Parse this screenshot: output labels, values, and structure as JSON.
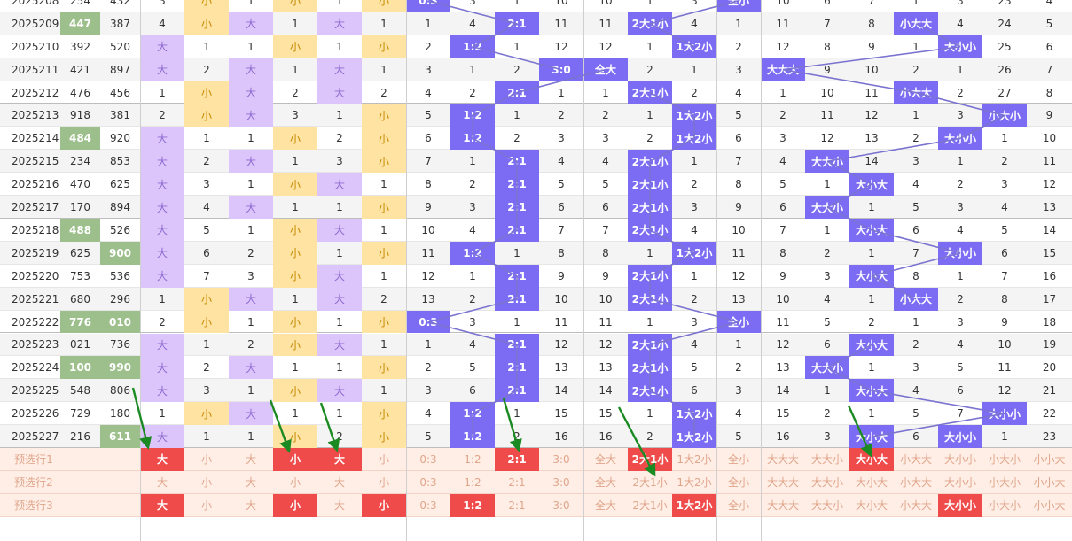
{
  "columns": 24,
  "rows": [
    [
      "2025208",
      "254",
      "432",
      "3",
      "小",
      "1",
      "小",
      "1",
      "小",
      "0:3",
      "3",
      "1",
      "10",
      "10",
      "1",
      "3",
      "全小",
      "10",
      "6",
      "7",
      "1",
      "3",
      "23",
      "4"
    ],
    [
      "2025209",
      "447",
      "387",
      "4",
      "小",
      "大",
      "1",
      "大",
      "1",
      "1",
      "4",
      "2:1",
      "11",
      "11",
      "2大1小",
      "4",
      "1",
      "11",
      "7",
      "8",
      "小大大",
      "4",
      "24",
      "5"
    ],
    [
      "2025210",
      "392",
      "520",
      "大",
      "1",
      "1",
      "小",
      "1",
      "小",
      "2",
      "1:2",
      "1",
      "12",
      "12",
      "1",
      "1大2小",
      "2",
      "12",
      "8",
      "9",
      "1",
      "大小小",
      "25",
      "6"
    ],
    [
      "2025211",
      "421",
      "897",
      "大",
      "2",
      "大",
      "1",
      "大",
      "1",
      "3",
      "1",
      "2",
      "3:0",
      "全大",
      "2",
      "1",
      "3",
      "大大大",
      "9",
      "10",
      "2",
      "1",
      "26",
      "7"
    ],
    [
      "2025212",
      "476",
      "456",
      "1",
      "小",
      "大",
      "2",
      "大",
      "2",
      "4",
      "2",
      "2:1",
      "1",
      "1",
      "2大1小",
      "2",
      "4",
      "1",
      "10",
      "11",
      "小大大",
      "2",
      "27",
      "8"
    ],
    [
      "2025213",
      "918",
      "381",
      "2",
      "小",
      "大",
      "3",
      "1",
      "小",
      "5",
      "1:2",
      "1",
      "2",
      "2",
      "1",
      "1大2小",
      "5",
      "2",
      "11",
      "12",
      "1",
      "3",
      "小大小",
      "9"
    ],
    [
      "2025214",
      "484",
      "920",
      "大",
      "1",
      "1",
      "小",
      "2",
      "小",
      "6",
      "1:2",
      "2",
      "3",
      "3",
      "2",
      "1大2小",
      "6",
      "3",
      "12",
      "13",
      "2",
      "大小小",
      "1",
      "10"
    ],
    [
      "2025215",
      "234",
      "853",
      "大",
      "2",
      "大",
      "1",
      "3",
      "小",
      "7",
      "1",
      "2:1",
      "4",
      "4",
      "2大1小",
      "1",
      "7",
      "4",
      "大大小",
      "14",
      "3",
      "1",
      "2",
      "11"
    ],
    [
      "2025216",
      "470",
      "625",
      "大",
      "3",
      "1",
      "小",
      "大",
      "1",
      "8",
      "2",
      "2:1",
      "5",
      "5",
      "2大1小",
      "2",
      "8",
      "5",
      "1",
      "大小大",
      "4",
      "2",
      "3",
      "12"
    ],
    [
      "2025217",
      "170",
      "894",
      "大",
      "4",
      "大",
      "1",
      "1",
      "小",
      "9",
      "3",
      "2:1",
      "6",
      "6",
      "2大1小",
      "3",
      "9",
      "6",
      "大大小",
      "1",
      "5",
      "3",
      "4",
      "13"
    ],
    [
      "2025218",
      "488",
      "526",
      "大",
      "5",
      "1",
      "小",
      "大",
      "1",
      "10",
      "4",
      "2:1",
      "7",
      "7",
      "2大1小",
      "4",
      "10",
      "7",
      "1",
      "大小大",
      "6",
      "4",
      "5",
      "14"
    ],
    [
      "2025219",
      "625",
      "900",
      "大",
      "6",
      "2",
      "小",
      "1",
      "小",
      "11",
      "1:2",
      "1",
      "8",
      "8",
      "1",
      "1大2小",
      "11",
      "8",
      "2",
      "1",
      "7",
      "大小小",
      "6",
      "15"
    ],
    [
      "2025220",
      "753",
      "536",
      "大",
      "7",
      "3",
      "小",
      "大",
      "1",
      "12",
      "1",
      "2:1",
      "9",
      "9",
      "2大1小",
      "1",
      "12",
      "9",
      "3",
      "大小大",
      "8",
      "1",
      "7",
      "16"
    ],
    [
      "2025221",
      "680",
      "296",
      "1",
      "小",
      "大",
      "1",
      "大",
      "2",
      "13",
      "2",
      "2:1",
      "10",
      "10",
      "2大1小",
      "2",
      "13",
      "10",
      "4",
      "1",
      "小大大",
      "2",
      "8",
      "17"
    ],
    [
      "2025222",
      "776",
      "010",
      "2",
      "小",
      "1",
      "小",
      "1",
      "小",
      "0:3",
      "3",
      "1",
      "11",
      "11",
      "1",
      "3",
      "全小",
      "11",
      "5",
      "2",
      "1",
      "3",
      "9",
      "18"
    ],
    [
      "2025223",
      "021",
      "736",
      "大",
      "1",
      "2",
      "小",
      "大",
      "1",
      "1",
      "4",
      "2:1",
      "12",
      "12",
      "2大1小",
      "4",
      "1",
      "12",
      "6",
      "大小大",
      "2",
      "4",
      "10",
      "19"
    ],
    [
      "2025224",
      "100",
      "990",
      "大",
      "2",
      "大",
      "1",
      "1",
      "小",
      "2",
      "5",
      "2:1",
      "13",
      "13",
      "2大1小",
      "5",
      "2",
      "13",
      "大大小",
      "1",
      "3",
      "5",
      "11",
      "20"
    ],
    [
      "2025225",
      "548",
      "806",
      "大",
      "3",
      "1",
      "小",
      "大",
      "1",
      "3",
      "6",
      "2:1",
      "14",
      "14",
      "2大1小",
      "6",
      "3",
      "14",
      "1",
      "大小大",
      "4",
      "6",
      "12",
      "21"
    ],
    [
      "2025226",
      "729",
      "180",
      "1",
      "小",
      "大",
      "1",
      "1",
      "小",
      "4",
      "1:2",
      "1",
      "15",
      "15",
      "1",
      "1大2小",
      "4",
      "15",
      "2",
      "1",
      "5",
      "7",
      "大小小",
      "22"
    ],
    [
      "2025227",
      "216",
      "611",
      "大",
      "1",
      "1",
      "小",
      "2",
      "小",
      "5",
      "1:2",
      "2",
      "16",
      "16",
      "2",
      "1大2小",
      "5",
      "16",
      "3",
      "大小大",
      "6",
      "大小小",
      "1",
      "23"
    ]
  ],
  "highlight_nums": [
    [
      1,
      1
    ],
    [
      6,
      1
    ],
    [
      10,
      1
    ],
    [
      11,
      2
    ],
    [
      14,
      1
    ],
    [
      14,
      2
    ],
    [
      16,
      1
    ],
    [
      16,
      2
    ],
    [
      19,
      2
    ]
  ],
  "forecast": [
    {
      "label": "预选行1",
      "cells": [
        "-",
        "-",
        "大",
        "小",
        "大",
        "小",
        "大",
        "小",
        "0:3",
        "1:2",
        "2:1",
        "3:0",
        "全大",
        "2大1小",
        "1大2小",
        "全小",
        "大大大",
        "大大小",
        "大小大",
        "小大大",
        "大小小",
        "小大小",
        "小小大"
      ],
      "hits": [
        2,
        5,
        6,
        10,
        13,
        18
      ]
    },
    {
      "label": "预选行2",
      "cells": [
        "-",
        "-",
        "大",
        "小",
        "大",
        "小",
        "大",
        "小",
        "0:3",
        "1:2",
        "2:1",
        "3:0",
        "全大",
        "2大1小",
        "1大2小",
        "全小",
        "大大大",
        "大大小",
        "大小大",
        "小大大",
        "大小小",
        "小大小",
        "小小大"
      ],
      "hits": []
    },
    {
      "label": "预选行3",
      "cells": [
        "-",
        "-",
        "大",
        "小",
        "大",
        "小",
        "大",
        "小",
        "0:3",
        "1:2",
        "2:1",
        "3:0",
        "全大",
        "2大1小",
        "1大2小",
        "全小",
        "大大大",
        "大大小",
        "大小大",
        "小大大",
        "大小小",
        "小大小",
        "小小大"
      ],
      "hits": [
        2,
        5,
        7,
        9,
        14,
        20
      ]
    }
  ],
  "colors": {
    "big_bg": "#dcc5fb",
    "big_fg": "#8f6bd1",
    "small_bg": "#ffe3a3",
    "small_fg": "#c78a00",
    "hit_bg": "#7b6cf3",
    "num_hit_bg": "#9cbf8b",
    "forecast_bg": "#ffeee6",
    "forecast_fg": "#e0a58a",
    "forecast_hit_bg": "#f04b4b",
    "line": "#7a74d0",
    "arrow": "#1b8a22"
  }
}
